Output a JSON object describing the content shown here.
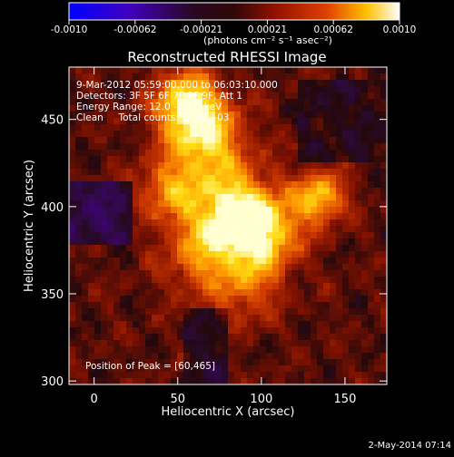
{
  "colorbar": {
    "ticks": [
      "-0.0010",
      "-0.00062",
      "-0.00021",
      "0.00021",
      "0.00062",
      "0.0010"
    ],
    "unit_label": "(photons cm⁻² s⁻¹ asec⁻²)",
    "colors": [
      "#0000ff",
      "#5a00a0",
      "#3a0a20",
      "#8a1000",
      "#e04000",
      "#ffd000",
      "#ffffff"
    ]
  },
  "chart_data": {
    "type": "heatmap",
    "title": "Reconstructed RHESSI Image",
    "xlabel": "Heliocentric X (arcsec)",
    "ylabel": "Heliocentric Y (arcsec)",
    "x_ticks": [
      "0",
      "50",
      "100",
      "150"
    ],
    "y_ticks": [
      "300",
      "350",
      "400",
      "450"
    ],
    "xlim": [
      -15,
      175
    ],
    "ylim": [
      298,
      480
    ],
    "peak": [
      60,
      465
    ],
    "info_lines": [
      "9-Mar-2012 05:59:00.000 to 06:03:10.000",
      "Detectors: 3F 5F 6F 7F 8F 9F, Att 1",
      "Energy Range: 12.0 - 25.0 keV",
      "Clean     Total counts: 2.98E+03"
    ],
    "peak_text": "Position of Peak = [60,465]"
  },
  "footer": {
    "timestamp": "2-May-2014 07:14"
  }
}
